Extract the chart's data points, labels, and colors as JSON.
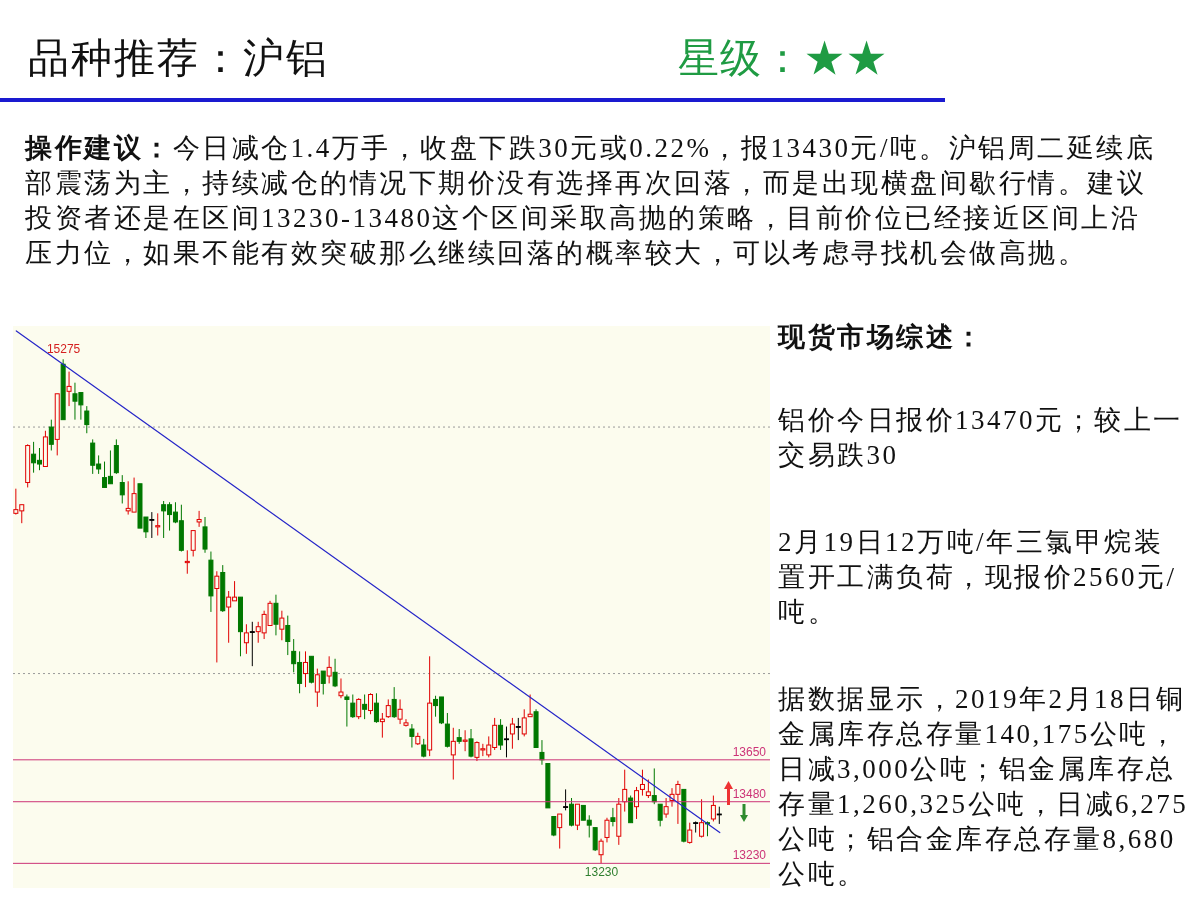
{
  "chart_data": {
    "type": "candlestick",
    "title": "品种推荐：沪铝",
    "subtitle": "星级：★★",
    "categories": [
      null,
      null,
      null,
      null,
      null,
      null,
      null,
      null,
      null,
      null,
      null,
      null,
      null,
      null,
      null,
      null,
      null,
      null,
      null,
      null,
      null,
      null,
      null,
      null,
      null,
      null,
      null,
      null,
      null,
      null,
      null,
      null,
      null,
      null,
      null,
      null,
      null,
      null,
      null,
      null,
      null,
      null,
      null,
      null,
      null,
      null,
      null,
      null,
      null,
      null,
      null,
      null,
      null,
      null,
      null,
      null,
      null,
      null,
      null,
      null,
      null,
      null,
      null,
      null,
      null,
      null,
      null,
      null,
      null,
      null,
      null,
      null,
      null,
      null,
      null,
      null,
      null,
      null,
      null,
      null,
      null,
      null,
      null,
      null,
      null,
      null,
      null,
      null,
      null,
      null,
      null,
      null,
      null,
      null,
      null,
      null,
      null,
      null,
      null,
      null,
      null,
      null,
      null,
      null,
      null,
      null,
      null,
      null,
      null,
      null,
      null,
      null,
      null,
      null,
      null,
      null,
      null,
      null,
      null,
      null
    ],
    "ohlc": [
      [
        14650,
        14750,
        14645,
        14665
      ],
      [
        14660,
        14685,
        14610,
        14685
      ],
      [
        14775,
        14930,
        14755,
        14925
      ],
      [
        14890,
        14940,
        14815,
        14855
      ],
      [
        14865,
        14915,
        14825,
        14850
      ],
      [
        14840,
        14985,
        14840,
        14960
      ],
      [
        15000,
        15030,
        14905,
        14930
      ],
      [
        14950,
        15135,
        14885,
        15135
      ],
      [
        15255,
        15275,
        15030,
        15030
      ],
      [
        15145,
        15225,
        15085,
        15165
      ],
      [
        15135,
        15180,
        15030,
        15105
      ],
      [
        15140,
        15140,
        15030,
        15090
      ],
      [
        15065,
        15085,
        14975,
        15010
      ],
      [
        14935,
        14950,
        14810,
        14845
      ],
      [
        14850,
        14885,
        14810,
        14830
      ],
      [
        14795,
        14860,
        14755,
        14755
      ],
      [
        14800,
        14905,
        14770,
        14770
      ],
      [
        14925,
        14950,
        14810,
        14815
      ],
      [
        14775,
        14805,
        14690,
        14725
      ],
      [
        14660,
        14780,
        14645,
        14670
      ],
      [
        14655,
        14795,
        14655,
        14730
      ],
      [
        14770,
        14770,
        14590,
        14590
      ],
      [
        14635,
        14635,
        14550,
        14575
      ],
      [
        14625,
        14655,
        14550,
        14625
      ],
      [
        14595,
        14650,
        14560,
        14600
      ],
      [
        14685,
        14700,
        14550,
        14660
      ],
      [
        14685,
        14695,
        14580,
        14645
      ],
      [
        14655,
        14695,
        14610,
        14615
      ],
      [
        14620,
        14685,
        14495,
        14500
      ],
      [
        14450,
        14500,
        14405,
        14455
      ],
      [
        14500,
        14580,
        14475,
        14580
      ],
      [
        14615,
        14660,
        14595,
        14625
      ],
      [
        14595,
        14635,
        14490,
        14505
      ],
      [
        14460,
        14495,
        14250,
        14315
      ],
      [
        14345,
        14415,
        14045,
        14395
      ],
      [
        14410,
        14440,
        14250,
        14255
      ],
      [
        14270,
        14335,
        14125,
        14310
      ],
      [
        14295,
        14375,
        14295,
        14310
      ],
      [
        14310,
        14310,
        14070,
        14170
      ],
      [
        14125,
        14200,
        14080,
        14165
      ],
      [
        14170,
        14210,
        14030,
        14170
      ],
      [
        14170,
        14210,
        14125,
        14190
      ],
      [
        14165,
        14255,
        14140,
        14240
      ],
      [
        14195,
        14295,
        14195,
        14285
      ],
      [
        14285,
        14320,
        14155,
        14200
      ],
      [
        14180,
        14255,
        14135,
        14225
      ],
      [
        14195,
        14235,
        14075,
        14130
      ],
      [
        14090,
        14140,
        14005,
        14040
      ],
      [
        14045,
        14090,
        13920,
        13960
      ],
      [
        14000,
        14090,
        13945,
        14045
      ],
      [
        14070,
        14070,
        13960,
        13965
      ],
      [
        13925,
        14020,
        13865,
        13995
      ],
      [
        14010,
        14010,
        13915,
        13960
      ],
      [
        13990,
        14070,
        13960,
        14025
      ],
      [
        14005,
        14060,
        13945,
        13950
      ],
      [
        13910,
        13980,
        13900,
        13925
      ],
      [
        13905,
        13915,
        13785,
        13895
      ],
      [
        13880,
        13915,
        13820,
        13825
      ],
      [
        13825,
        13900,
        13815,
        13895
      ],
      [
        13875,
        13915,
        13815,
        13855
      ],
      [
        13850,
        13920,
        13835,
        13915
      ],
      [
        13880,
        13920,
        13800,
        13805
      ],
      [
        13805,
        13840,
        13740,
        13815
      ],
      [
        13825,
        13895,
        13820,
        13870
      ],
      [
        13895,
        13945,
        13820,
        13825
      ],
      [
        13815,
        13895,
        13795,
        13855
      ],
      [
        13790,
        13815,
        13785,
        13800
      ],
      [
        13775,
        13795,
        13700,
        13745
      ],
      [
        13715,
        13760,
        13710,
        13745
      ],
      [
        13710,
        13735,
        13660,
        13665
      ],
      [
        13690,
        14070,
        13665,
        13880
      ],
      [
        13895,
        13910,
        13825,
        13870
      ],
      [
        13905,
        13905,
        13795,
        13800
      ],
      [
        13795,
        13840,
        13700,
        13705
      ],
      [
        13670,
        13780,
        13570,
        13725
      ],
      [
        13740,
        13775,
        13715,
        13725
      ],
      [
        13725,
        13770,
        13685,
        13730
      ],
      [
        13735,
        13775,
        13660,
        13665
      ],
      [
        13660,
        13725,
        13645,
        13720
      ],
      [
        13690,
        13715,
        13665,
        13695
      ],
      [
        13670,
        13745,
        13660,
        13710
      ],
      [
        13700,
        13820,
        13690,
        13790
      ],
      [
        13790,
        13815,
        13690,
        13710
      ],
      [
        13735,
        13785,
        13660,
        13735
      ],
      [
        13755,
        13820,
        13695,
        13795
      ],
      [
        13785,
        13820,
        13730,
        13785
      ],
      [
        13755,
        13855,
        13745,
        13820
      ],
      [
        13825,
        13915,
        13825,
        13835
      ],
      [
        13845,
        13855,
        13700,
        13700
      ],
      [
        13680,
        13730,
        13630,
        13650
      ],
      [
        13635,
        13635,
        13455,
        13455
      ],
      [
        13420,
        13420,
        13340,
        13345
      ],
      [
        13375,
        13430,
        13290,
        13430
      ],
      [
        13460,
        13530,
        13445,
        13460
      ],
      [
        13470,
        13495,
        13380,
        13385
      ],
      [
        13385,
        13470,
        13365,
        13470
      ],
      [
        13465,
        13465,
        13405,
        13405
      ],
      [
        13405,
        13425,
        13335,
        13385
      ],
      [
        13375,
        13375,
        13280,
        13285
      ],
      [
        13265,
        13330,
        13230,
        13320
      ],
      [
        13335,
        13415,
        13315,
        13405
      ],
      [
        13415,
        13455,
        13380,
        13400
      ],
      [
        13340,
        13495,
        13305,
        13470
      ],
      [
        13480,
        13610,
        13440,
        13530
      ],
      [
        13495,
        13505,
        13395,
        13395
      ],
      [
        13460,
        13540,
        13410,
        13525
      ],
      [
        13530,
        13610,
        13505,
        13550
      ],
      [
        13505,
        13570,
        13495,
        13520
      ],
      [
        13505,
        13615,
        13470,
        13480
      ],
      [
        13470,
        13470,
        13380,
        13405
      ],
      [
        13430,
        13495,
        13415,
        13460
      ],
      [
        13485,
        13535,
        13460,
        13510
      ],
      [
        13510,
        13565,
        13390,
        13550
      ],
      [
        13530,
        13530,
        13315,
        13320
      ],
      [
        13315,
        13395,
        13310,
        13365
      ],
      [
        13395,
        13400,
        13355,
        13395
      ],
      [
        13340,
        13490,
        13335,
        13395
      ],
      [
        13395,
        13400,
        13340,
        13390
      ],
      [
        13410,
        13505,
        13400,
        13465
      ],
      [
        13430,
        13460,
        13390,
        13430
      ]
    ],
    "colors": [
      "#e00000",
      "#e00000",
      "#e00000",
      "#007800",
      "#007800",
      "#e00000",
      "#007800",
      "#e00000",
      "#007800",
      "#e00000",
      "#007800",
      "#007800",
      "#007800",
      "#007800",
      "#007800",
      "#007800",
      "#007800",
      "#007800",
      "#007800",
      "#e00000",
      "#e00000",
      "#007800",
      "#007800",
      "#000000",
      "#e00000",
      "#007800",
      "#007800",
      "#007800",
      "#007800",
      "#e00000",
      "#e00000",
      "#e00000",
      "#007800",
      "#007800",
      "#e00000",
      "#007800",
      "#e00000",
      "#e00000",
      "#007800",
      "#e00000",
      "#000000",
      "#e00000",
      "#e00000",
      "#e00000",
      "#007800",
      "#e00000",
      "#007800",
      "#007800",
      "#007800",
      "#e00000",
      "#007800",
      "#e00000",
      "#007800",
      "#e00000",
      "#007800",
      "#e00000",
      "#007800",
      "#007800",
      "#e00000",
      "#007800",
      "#e00000",
      "#007800",
      "#e00000",
      "#e00000",
      "#007800",
      "#e00000",
      "#e00000",
      "#007800",
      "#e00000",
      "#007800",
      "#e00000",
      "#007800",
      "#007800",
      "#007800",
      "#e00000",
      "#007800",
      "#e00000",
      "#007800",
      "#e00000",
      "#e00000",
      "#e00000",
      "#e00000",
      "#007800",
      "#000000",
      "#e00000",
      "#000000",
      "#e00000",
      "#e00000",
      "#007800",
      "#007800",
      "#007800",
      "#007800",
      "#e00000",
      "#000000",
      "#007800",
      "#e00000",
      "#007800",
      "#007800",
      "#007800",
      "#e00000",
      "#e00000",
      "#007800",
      "#e00000",
      "#e00000",
      "#007800",
      "#e00000",
      "#e00000",
      "#e00000",
      "#007800",
      "#007800",
      "#e00000",
      "#e00000",
      "#e00000",
      "#007800",
      "#e00000",
      "#000000",
      "#e00000",
      "#007800",
      "#e00000",
      "#000000"
    ],
    "series": [
      {
        "type": "line",
        "color": "#2626c8",
        "values": [
          15390,
          null,
          null,
          null,
          null,
          null,
          null,
          null,
          null,
          null,
          null,
          null,
          null,
          null,
          null,
          null,
          null,
          null,
          null,
          null,
          null,
          null,
          null,
          null,
          null,
          null,
          null,
          null,
          null,
          null,
          null,
          null,
          null,
          null,
          null,
          null,
          null,
          null,
          null,
          null,
          null,
          null,
          null,
          null,
          null,
          null,
          null,
          null,
          null,
          null,
          null,
          null,
          null,
          null,
          null,
          null,
          null,
          null,
          null,
          null,
          null,
          null,
          null,
          null,
          null,
          null,
          null,
          null,
          null,
          null,
          null,
          null,
          null,
          null,
          null,
          null,
          null,
          null,
          null,
          null,
          null,
          null,
          null,
          null,
          null,
          null,
          null,
          null,
          null,
          null,
          null,
          null,
          null,
          null,
          null,
          null,
          null,
          null,
          null,
          null,
          null,
          null,
          null,
          null,
          null,
          null,
          null,
          null,
          null,
          null,
          null,
          null,
          null,
          null,
          null,
          null,
          null,
          null,
          null,
          13355
        ]
      }
    ],
    "ylim": [
      13130,
      15410
    ],
    "yticks": [
      {
        "value": 14000,
        "label": null
      },
      {
        "value": 15000,
        "label": null
      }
    ],
    "grid": "y",
    "ref_lines": [
      {
        "axis": "y",
        "value": 13650,
        "label": "13650",
        "color": "#cc3377"
      },
      {
        "axis": "y",
        "value": 13480,
        "label": "13480",
        "color": "#cc3377"
      },
      {
        "axis": "y",
        "value": 13230,
        "label": "13230",
        "color": "#cc3377"
      }
    ],
    "annotations": [
      "操作建议：今日减仓1.4万手，收盘下跌30元或0.22%，报13430元/吨。沪铝周二延续底部震荡为主，持续减仓的情况下期价没有选择再次回落，而是出现横盘间歇行情。建议投资者还是在区间13230-13480这个区间采取高抛的策略，目前价位已经接近区间上沿压力位，如果不能有效突破那么继续回落的概率较大，可以考虑寻找机会做高抛。",
      "现货市场综述：",
      "铝价今日报价13470元；较上一交易跌30",
      "2月19日12万吨/年三氯甲烷装置开工满负荷，现报价2560元/吨。",
      "据数据显示，2019年2月18日铜金属库存总存量140,175公吨，日减3,000公吨；铝金属库存总存量1,260,325公吨，日减6,275公吨；铝合金库存总存量8,680公吨。",
      {
        "text": "15275",
        "y": 15275
      },
      {
        "text": "13230",
        "y": 13230
      }
    ]
  }
}
